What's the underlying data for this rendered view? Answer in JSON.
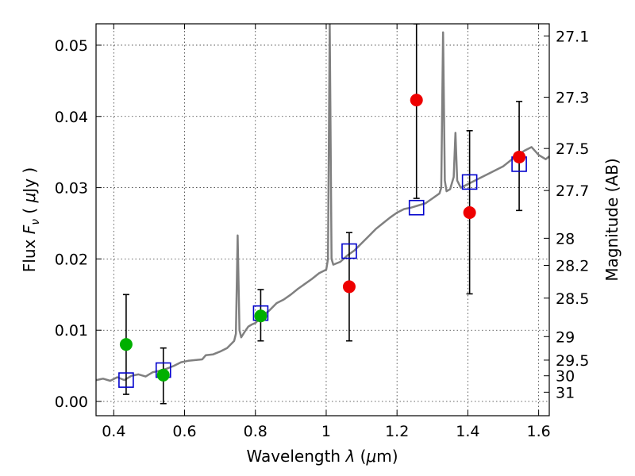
{
  "chart_data": {
    "type": "scatter",
    "xlabel": "Wavelength  λ (μm)",
    "ylabel": "Flux  Fν  ( μJy )",
    "ylabel_right": "Magnitude (AB)",
    "xlim": [
      0.35,
      1.63
    ],
    "ylim": [
      -0.002,
      0.053
    ],
    "x_ticks": [
      {
        "value": 0.4,
        "label": "0.4"
      },
      {
        "value": 0.6,
        "label": "0.6"
      },
      {
        "value": 0.8,
        "label": "0.8"
      },
      {
        "value": 1.0,
        "label": "1"
      },
      {
        "value": 1.2,
        "label": "1.2"
      },
      {
        "value": 1.4,
        "label": "1.4"
      },
      {
        "value": 1.6,
        "label": "1.6"
      }
    ],
    "y_ticks": [
      {
        "value": 0.0,
        "label": "0.00"
      },
      {
        "value": 0.01,
        "label": "0.01"
      },
      {
        "value": 0.02,
        "label": "0.02"
      },
      {
        "value": 0.03,
        "label": "0.03"
      },
      {
        "value": 0.04,
        "label": "0.04"
      },
      {
        "value": 0.05,
        "label": "0.05"
      }
    ],
    "right_ticks": [
      {
        "flux": 0.0513,
        "label": "27.1"
      },
      {
        "flux": 0.0427,
        "label": "27.3"
      },
      {
        "flux": 0.0355,
        "label": "27.5"
      },
      {
        "flux": 0.0296,
        "label": "27.7"
      },
      {
        "flux": 0.0229,
        "label": "28"
      },
      {
        "flux": 0.0191,
        "label": "28.2"
      },
      {
        "flux": 0.0145,
        "label": "28.5"
      },
      {
        "flux": 0.0091,
        "label": "29"
      },
      {
        "flux": 0.0058,
        "label": "29.5"
      },
      {
        "flux": 0.0036,
        "label": "30"
      },
      {
        "flux": 0.0013,
        "label": "31"
      }
    ],
    "series": [
      {
        "name": "model-spectrum",
        "style": "line",
        "color": "#808080",
        "points": [
          [
            0.35,
            0.003
          ],
          [
            0.37,
            0.0032
          ],
          [
            0.39,
            0.0029
          ],
          [
            0.41,
            0.0034
          ],
          [
            0.43,
            0.003
          ],
          [
            0.45,
            0.0036
          ],
          [
            0.47,
            0.0038
          ],
          [
            0.49,
            0.0035
          ],
          [
            0.51,
            0.0041
          ],
          [
            0.53,
            0.0043
          ],
          [
            0.55,
            0.0046
          ],
          [
            0.57,
            0.005
          ],
          [
            0.59,
            0.0055
          ],
          [
            0.61,
            0.0057
          ],
          [
            0.63,
            0.0058
          ],
          [
            0.65,
            0.0059
          ],
          [
            0.66,
            0.0065
          ],
          [
            0.68,
            0.0066
          ],
          [
            0.7,
            0.007
          ],
          [
            0.72,
            0.0075
          ],
          [
            0.74,
            0.0085
          ],
          [
            0.745,
            0.0095
          ],
          [
            0.75,
            0.0233
          ],
          [
            0.755,
            0.01
          ],
          [
            0.76,
            0.009
          ],
          [
            0.77,
            0.0098
          ],
          [
            0.78,
            0.0105
          ],
          [
            0.79,
            0.0108
          ],
          [
            0.8,
            0.011
          ],
          [
            0.82,
            0.012
          ],
          [
            0.84,
            0.0128
          ],
          [
            0.86,
            0.0138
          ],
          [
            0.88,
            0.0143
          ],
          [
            0.9,
            0.015
          ],
          [
            0.92,
            0.0158
          ],
          [
            0.94,
            0.0165
          ],
          [
            0.96,
            0.0172
          ],
          [
            0.98,
            0.018
          ],
          [
            1.0,
            0.0185
          ],
          [
            1.005,
            0.02
          ],
          [
            1.01,
            0.053
          ],
          [
            1.015,
            0.02
          ],
          [
            1.02,
            0.0192
          ],
          [
            1.04,
            0.0196
          ],
          [
            1.06,
            0.0205
          ],
          [
            1.08,
            0.0212
          ],
          [
            1.1,
            0.0222
          ],
          [
            1.12,
            0.0232
          ],
          [
            1.14,
            0.0242
          ],
          [
            1.16,
            0.025
          ],
          [
            1.18,
            0.0258
          ],
          [
            1.2,
            0.0265
          ],
          [
            1.22,
            0.027
          ],
          [
            1.24,
            0.0272
          ],
          [
            1.26,
            0.0275
          ],
          [
            1.28,
            0.0278
          ],
          [
            1.3,
            0.0285
          ],
          [
            1.32,
            0.0292
          ],
          [
            1.325,
            0.03
          ],
          [
            1.33,
            0.0518
          ],
          [
            1.335,
            0.031
          ],
          [
            1.34,
            0.0295
          ],
          [
            1.35,
            0.0298
          ],
          [
            1.36,
            0.0315
          ],
          [
            1.365,
            0.0377
          ],
          [
            1.37,
            0.031
          ],
          [
            1.38,
            0.03
          ],
          [
            1.4,
            0.0305
          ],
          [
            1.42,
            0.031
          ],
          [
            1.44,
            0.0315
          ],
          [
            1.46,
            0.032
          ],
          [
            1.48,
            0.0325
          ],
          [
            1.5,
            0.033
          ],
          [
            1.52,
            0.0338
          ],
          [
            1.54,
            0.0346
          ],
          [
            1.56,
            0.0352
          ],
          [
            1.58,
            0.0357
          ],
          [
            1.6,
            0.0346
          ],
          [
            1.62,
            0.034
          ],
          [
            1.63,
            0.0344
          ]
        ]
      },
      {
        "name": "model-photometry",
        "style": "open-square",
        "color": "#0000cc",
        "points": [
          [
            0.435,
            0.003
          ],
          [
            0.54,
            0.0044
          ],
          [
            0.815,
            0.0124
          ],
          [
            1.065,
            0.0211
          ],
          [
            1.255,
            0.0272
          ],
          [
            1.405,
            0.0308
          ],
          [
            1.545,
            0.0333
          ]
        ]
      },
      {
        "name": "observed-green",
        "style": "filled-circle",
        "color": "#00b000",
        "points": [
          {
            "x": 0.435,
            "y": 0.008,
            "err_low": 0.001,
            "err_high": 0.015
          },
          {
            "x": 0.54,
            "y": 0.0037,
            "err_low": -0.0003,
            "err_high": 0.0075
          },
          {
            "x": 0.815,
            "y": 0.012,
            "err_low": 0.0085,
            "err_high": 0.0157
          }
        ]
      },
      {
        "name": "observed-red",
        "style": "filled-circle",
        "color": "#ee0000",
        "points": [
          {
            "x": 1.065,
            "y": 0.0161,
            "err_low": 0.0085,
            "err_high": 0.0237
          },
          {
            "x": 1.255,
            "y": 0.0423,
            "err_low": 0.0285,
            "err_high": 0.053
          },
          {
            "x": 1.405,
            "y": 0.0265,
            "err_low": 0.0151,
            "err_high": 0.038
          },
          {
            "x": 1.545,
            "y": 0.0343,
            "err_low": 0.0268,
            "err_high": 0.0421
          }
        ]
      }
    ]
  }
}
